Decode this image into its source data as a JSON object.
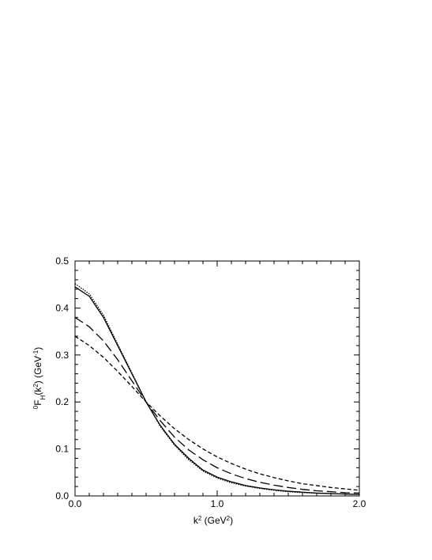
{
  "chart_data": {
    "type": "line",
    "xlabel": [
      "k",
      "2",
      " (GeV",
      "2",
      ")"
    ],
    "ylabel": [
      "0",
      "F",
      "H",
      "(k",
      "2",
      ") (GeV",
      "-1",
      ")"
    ],
    "x": [
      0.0,
      0.1,
      0.2,
      0.3,
      0.4,
      0.5,
      0.6,
      0.7,
      0.8,
      0.9,
      1.0,
      1.1,
      1.2,
      1.3,
      1.4,
      1.5,
      1.6,
      1.7,
      1.8,
      1.9,
      2.0
    ],
    "series": [
      {
        "color": "#000000",
        "dash": "solid",
        "values": [
          0.445,
          0.425,
          0.38,
          0.32,
          0.26,
          0.2,
          0.15,
          0.11,
          0.08,
          0.055,
          0.04,
          0.03,
          0.022,
          0.017,
          0.013,
          0.01,
          0.008,
          0.006,
          0.005,
          0.004,
          0.003
        ]
      },
      {
        "color": "#000000",
        "dash": "dotted",
        "values": [
          0.452,
          0.43,
          0.385,
          0.323,
          0.262,
          0.2,
          0.148,
          0.108,
          0.077,
          0.053,
          0.038,
          0.028,
          0.021,
          0.016,
          0.012,
          0.009,
          0.007,
          0.006,
          0.005,
          0.004,
          0.003
        ]
      },
      {
        "color": "#000000",
        "dash": "long-dash",
        "values": [
          0.38,
          0.36,
          0.33,
          0.29,
          0.245,
          0.2,
          0.16,
          0.125,
          0.098,
          0.077,
          0.06,
          0.047,
          0.037,
          0.029,
          0.023,
          0.018,
          0.014,
          0.011,
          0.009,
          0.007,
          0.006
        ]
      },
      {
        "color": "#000000",
        "dash": "short-dash",
        "values": [
          0.34,
          0.32,
          0.295,
          0.265,
          0.233,
          0.2,
          0.17,
          0.143,
          0.12,
          0.1,
          0.083,
          0.069,
          0.057,
          0.047,
          0.039,
          0.032,
          0.026,
          0.022,
          0.018,
          0.015,
          0.012
        ]
      }
    ],
    "xlim": [
      0,
      2
    ],
    "ylim": [
      0,
      0.5
    ],
    "xticks": [
      {
        "value": 0,
        "label": "0.0"
      },
      {
        "value": 1,
        "label": "1.0"
      },
      {
        "value": 2,
        "label": "2.0"
      }
    ],
    "yticks": [
      {
        "value": 0,
        "label": "0.0"
      },
      {
        "value": 0.1,
        "label": "0.1"
      },
      {
        "value": 0.2,
        "label": "0.2"
      },
      {
        "value": 0.3,
        "label": "0.3"
      },
      {
        "value": 0.4,
        "label": "0.4"
      },
      {
        "value": 0.5,
        "label": "0.5"
      }
    ],
    "xminorticks": [
      0.1,
      0.2,
      0.3,
      0.4,
      0.5,
      0.6,
      0.7,
      0.8,
      0.9,
      1.1,
      1.2,
      1.3,
      1.4,
      1.5,
      1.6,
      1.7,
      1.8,
      1.9
    ],
    "yminorticks": [
      0.02,
      0.04,
      0.06,
      0.08,
      0.12,
      0.14,
      0.16,
      0.18,
      0.22,
      0.24,
      0.26,
      0.28,
      0.32,
      0.34,
      0.36,
      0.38,
      0.42,
      0.44,
      0.46,
      0.48
    ],
    "grid": false
  }
}
